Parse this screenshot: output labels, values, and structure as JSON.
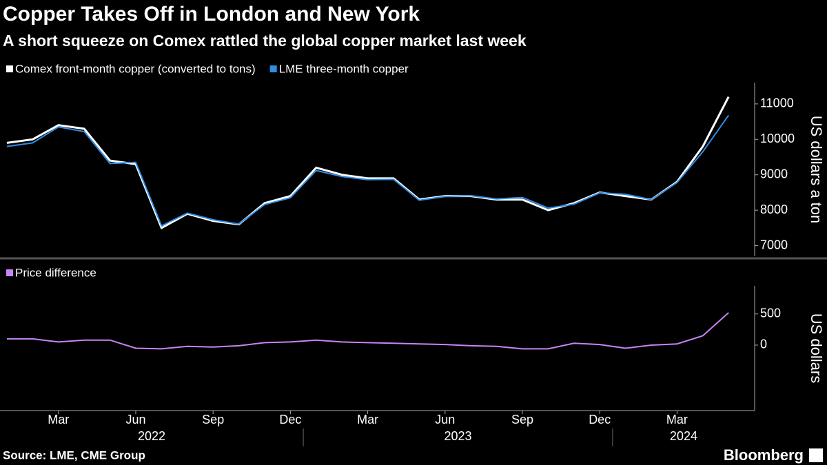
{
  "title": "Copper Takes Off in London and New York",
  "subtitle": "A short squeeze on Comex rattled the global copper market last week",
  "source": "Source: LME, CME Group",
  "brand": "Bloomberg",
  "chart_data": [
    {
      "type": "line",
      "ylabel": "US dollars a ton",
      "x": [
        "2022-01",
        "2022-02",
        "2022-03",
        "2022-04",
        "2022-05",
        "2022-06",
        "2022-07",
        "2022-08",
        "2022-09",
        "2022-10",
        "2022-11",
        "2022-12",
        "2023-01",
        "2023-02",
        "2023-03",
        "2023-04",
        "2023-05",
        "2023-06",
        "2023-07",
        "2023-08",
        "2023-09",
        "2023-10",
        "2023-11",
        "2023-12",
        "2024-01",
        "2024-02",
        "2024-03",
        "2024-04",
        "2024-05"
      ],
      "series": [
        {
          "name": "Comex front-month copper (converted to tons)",
          "color": "#ffffff",
          "values": [
            9900,
            10000,
            10400,
            10300,
            9400,
            9300,
            7500,
            7900,
            7700,
            7600,
            8200,
            8400,
            9200,
            9000,
            8900,
            8900,
            8300,
            8400,
            8400,
            8300,
            8300,
            8000,
            8200,
            8500,
            8400,
            8300,
            8800,
            9800,
            11200
          ]
        },
        {
          "name": "LME three-month copper",
          "color": "#2f8ee5",
          "values": [
            9800,
            9900,
            10350,
            10220,
            9320,
            9350,
            7560,
            7920,
            7730,
            7610,
            8160,
            8350,
            9120,
            8950,
            8860,
            8870,
            8280,
            8390,
            8410,
            8320,
            8360,
            8060,
            8170,
            8490,
            8450,
            8300,
            8780,
            9650,
            10680
          ]
        }
      ],
      "ylim": [
        6700,
        11600
      ],
      "yticks": [
        7000,
        8000,
        9000,
        10000,
        11000
      ]
    },
    {
      "type": "line",
      "ylabel": "US dollars",
      "x": [
        "2022-01",
        "2022-02",
        "2022-03",
        "2022-04",
        "2022-05",
        "2022-06",
        "2022-07",
        "2022-08",
        "2022-09",
        "2022-10",
        "2022-11",
        "2022-12",
        "2023-01",
        "2023-02",
        "2023-03",
        "2023-04",
        "2023-05",
        "2023-06",
        "2023-07",
        "2023-08",
        "2023-09",
        "2023-10",
        "2023-11",
        "2023-12",
        "2024-01",
        "2024-02",
        "2024-03",
        "2024-04",
        "2024-05"
      ],
      "series": [
        {
          "name": "Price difference",
          "color": "#c785f5",
          "values": [
            100,
            100,
            50,
            80,
            80,
            -50,
            -60,
            -20,
            -30,
            -10,
            40,
            50,
            80,
            50,
            40,
            30,
            20,
            10,
            -10,
            -20,
            -60,
            -60,
            30,
            10,
            -50,
            0,
            20,
            150,
            520
          ]
        }
      ],
      "ylim": [
        -1050,
        950
      ],
      "yticks": [
        0,
        500
      ],
      "xticks": [
        {
          "value": "2022-03",
          "label": "Mar"
        },
        {
          "value": "2022-06",
          "label": "Jun"
        },
        {
          "value": "2022-09",
          "label": "Sep"
        },
        {
          "value": "2022-12",
          "label": "Dec"
        },
        {
          "value": "2023-03",
          "label": "Mar"
        },
        {
          "value": "2023-06",
          "label": "Jun"
        },
        {
          "value": "2023-09",
          "label": "Sep"
        },
        {
          "value": "2023-12",
          "label": "Dec"
        },
        {
          "value": "2024-03",
          "label": "Mar"
        }
      ],
      "years": [
        2022,
        2023,
        2024
      ]
    }
  ]
}
